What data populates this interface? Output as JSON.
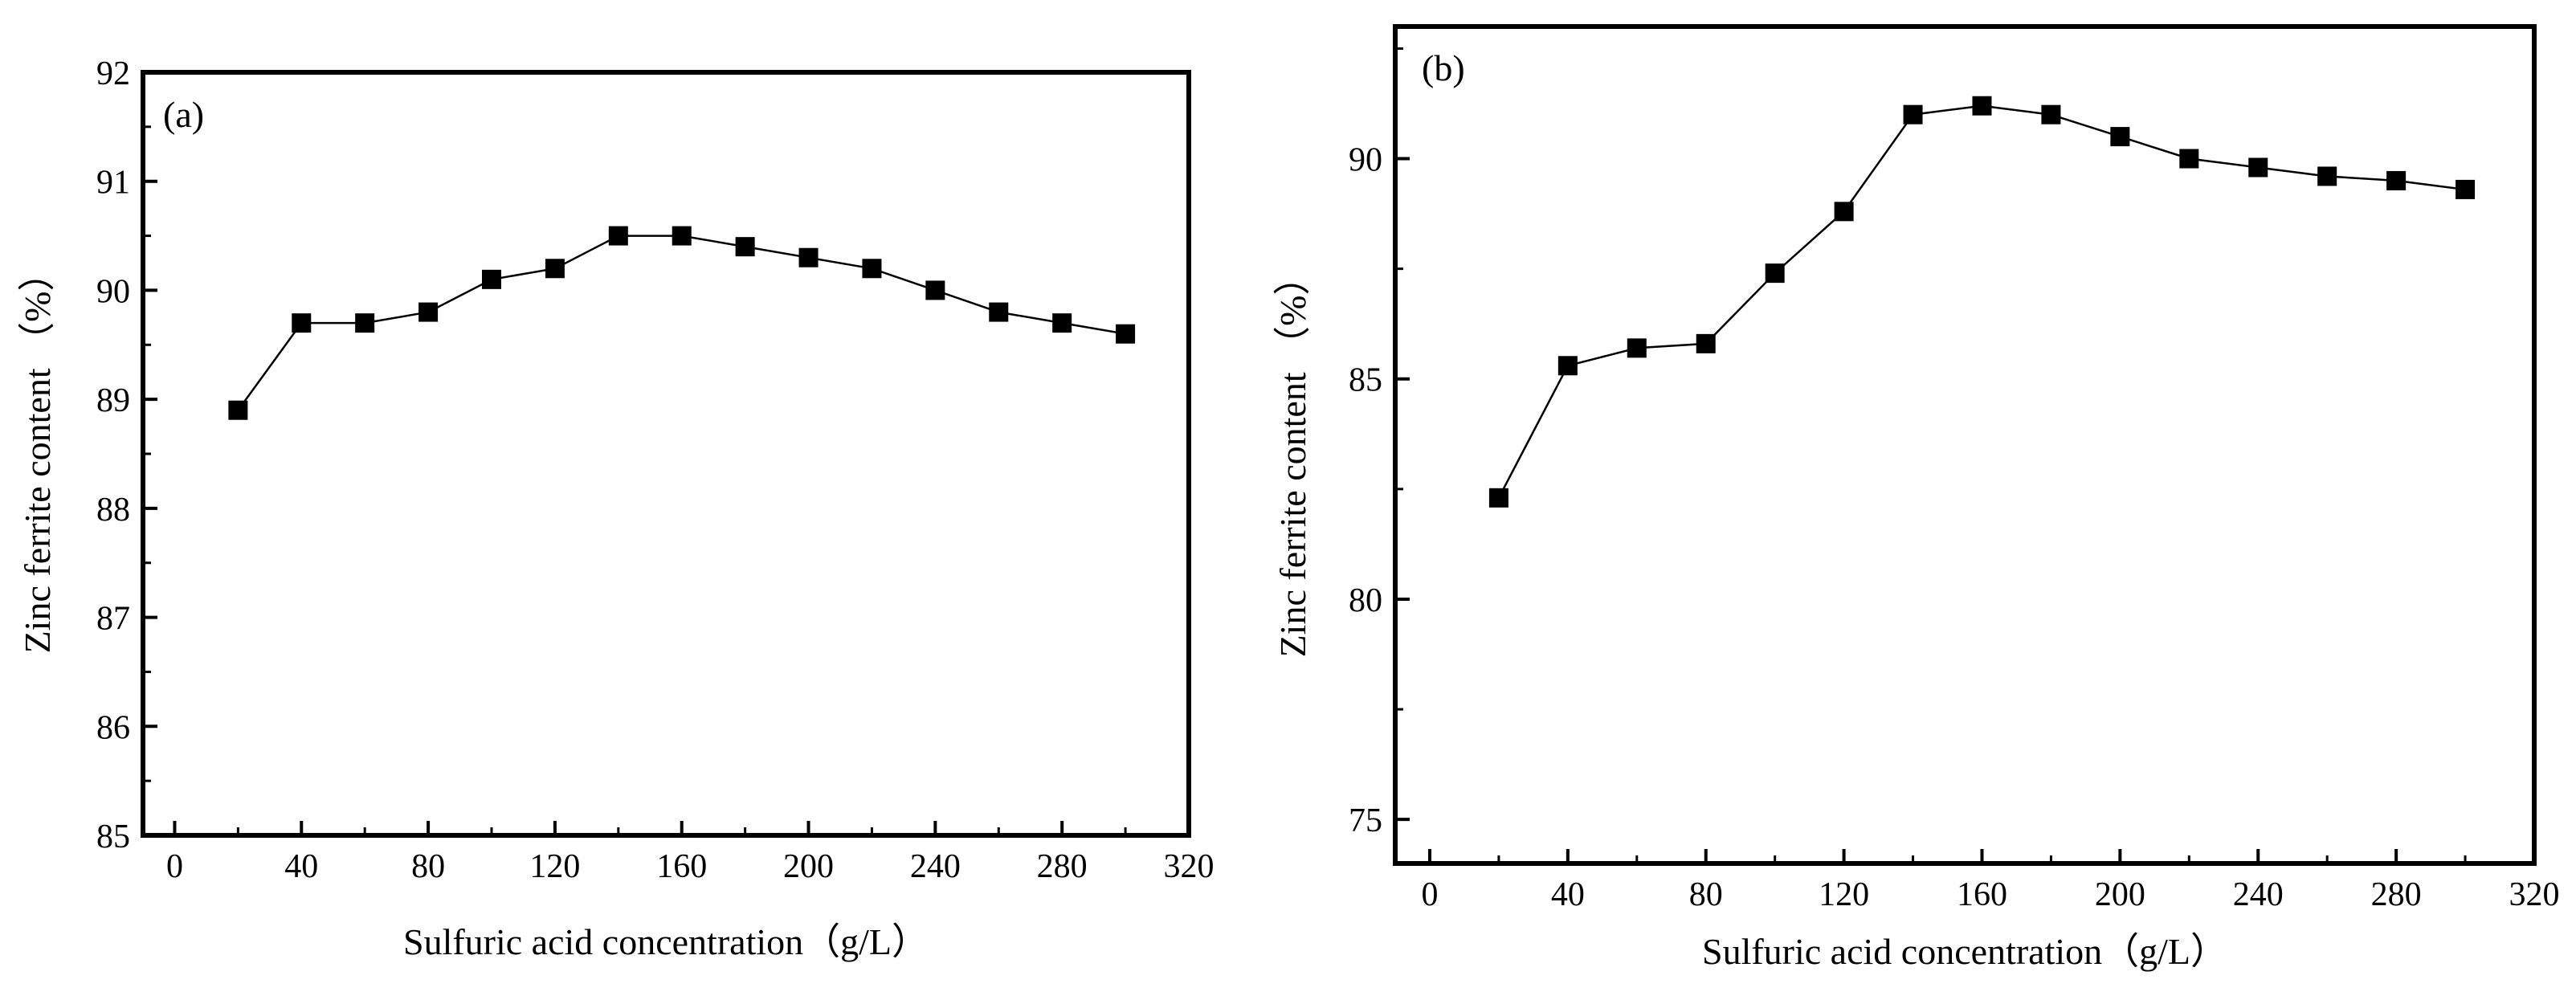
{
  "chart_data": [
    {
      "type": "line",
      "panel_label": "(a)",
      "title": "",
      "xlabel": "Sulfuric acid concentration（g/L）",
      "ylabel": "Zinc ferrite content （%）",
      "xlim": [
        -10,
        320
      ],
      "ylim": [
        85,
        92
      ],
      "xticks": [
        0,
        40,
        80,
        120,
        160,
        200,
        240,
        280,
        320
      ],
      "yticks": [
        85,
        86,
        87,
        88,
        89,
        90,
        91,
        92
      ],
      "x": [
        20,
        40,
        60,
        80,
        100,
        120,
        140,
        160,
        180,
        200,
        220,
        240,
        260,
        280,
        300
      ],
      "series": [
        {
          "name": "Zinc ferrite content",
          "values": [
            88.9,
            89.7,
            89.7,
            89.8,
            90.1,
            90.2,
            90.5,
            90.5,
            90.4,
            90.3,
            90.2,
            90.0,
            89.8,
            89.7,
            89.6
          ]
        }
      ],
      "marker": "square",
      "grid": false
    },
    {
      "type": "line",
      "panel_label": "(b)",
      "title": "",
      "xlabel": "Sulfuric acid concentration（g/L）",
      "ylabel": "Zinc ferrite content （%）",
      "xlim": [
        -10,
        320
      ],
      "ylim": [
        74,
        93
      ],
      "xticks": [
        0,
        40,
        80,
        120,
        160,
        200,
        240,
        280,
        320
      ],
      "yticks": [
        75,
        80,
        85,
        90
      ],
      "x": [
        20,
        40,
        60,
        80,
        100,
        120,
        140,
        160,
        180,
        200,
        220,
        240,
        260,
        280,
        300
      ],
      "series": [
        {
          "name": "Zinc ferrite content",
          "values": [
            82.3,
            85.3,
            85.7,
            85.8,
            87.4,
            88.8,
            91.0,
            91.2,
            91.0,
            90.5,
            90.0,
            89.8,
            89.6,
            89.5,
            89.3
          ]
        }
      ],
      "marker": "square",
      "grid": false
    }
  ]
}
